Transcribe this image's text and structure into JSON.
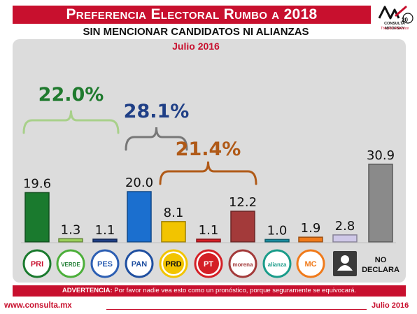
{
  "header": {
    "title": "Preferencia Electoral Rumbo a 2018",
    "subtitle": "SIN MENCIONAR CANDIDATOS NI ALIANZAS",
    "period": "Julio 2016"
  },
  "brand": {
    "name": "CONSULTA MITOFSKY",
    "tagline": "The poll reference",
    "badge": "20"
  },
  "warning": {
    "label": "ADVERTENCIA:",
    "text": "Por favor nadie vea esto como un pronóstico, porque seguramente se equivocará."
  },
  "footer": {
    "url": "www.consulta.mx",
    "date": "Julio 2016"
  },
  "chart_data": {
    "type": "bar",
    "categories": [
      "PRI",
      "VERDE",
      "encuentro social",
      "PAN",
      "PRD",
      "PT",
      "morena",
      "alianza",
      "MOVIMIENTO CIUDADANO",
      "CANDIDATURA INDEPENDIENTE",
      "NO DECLARA"
    ],
    "values": [
      19.6,
      1.3,
      1.1,
      20.0,
      8.1,
      1.1,
      12.2,
      1.0,
      1.9,
      2.8,
      30.9
    ],
    "value_labels": [
      "19.6",
      "1.3",
      "1.1",
      "20.0",
      "8.1",
      "1.1",
      "12.2",
      "1.0",
      "1.9",
      "2.8",
      "30.9"
    ],
    "bar_colors": [
      "#1a7a2e",
      "#9bd05a",
      "#1f3f86",
      "#1b6fcf",
      "#f2c400",
      "#d41f26",
      "#a33a3a",
      "#1a8fa3",
      "#f07a1a",
      "#cfc8e8",
      "#8a8a8a"
    ],
    "groups": [
      {
        "label": "22.0%",
        "color": "#1f7a2e",
        "members": [
          0,
          1,
          2
        ]
      },
      {
        "label": "28.1%",
        "color": "#1f3f86",
        "members": [
          3,
          4
        ]
      },
      {
        "label": "21.4%",
        "color": "#b05a18",
        "members": [
          4,
          5,
          6
        ]
      }
    ],
    "no_declara_label": [
      "NO",
      "DECLARA"
    ],
    "ylim": [
      0,
      33
    ],
    "grid": false
  }
}
